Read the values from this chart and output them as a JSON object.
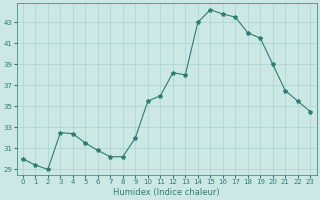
{
  "hours": [
    0,
    1,
    2,
    3,
    4,
    5,
    6,
    7,
    8,
    9,
    10,
    11,
    12,
    13,
    14,
    15,
    16,
    17,
    18,
    19,
    20,
    21,
    22,
    23
  ],
  "humidex": [
    30.0,
    29.4,
    29.0,
    32.5,
    32.4,
    31.5,
    30.8,
    30.2,
    30.2,
    32.0,
    35.5,
    36.0,
    38.2,
    38.0,
    43.0,
    44.2,
    43.8,
    43.5,
    42.0,
    41.5,
    39.0,
    36.5,
    35.5,
    34.5
  ],
  "line_color": "#2e7d72",
  "marker": "*",
  "marker_size": 3,
  "bg_color": "#cce8e4",
  "grid_color": "#aad4cf",
  "yticks": [
    29,
    31,
    33,
    35,
    37,
    39,
    41,
    43
  ],
  "xticks": [
    0,
    1,
    2,
    3,
    4,
    5,
    6,
    7,
    8,
    9,
    10,
    11,
    12,
    13,
    14,
    15,
    16,
    17,
    18,
    19,
    20,
    21,
    22,
    23
  ],
  "xlabel": "Humidex (Indice chaleur)",
  "ylim": [
    28.5,
    44.8
  ],
  "xlim": [
    -0.5,
    23.5
  ]
}
